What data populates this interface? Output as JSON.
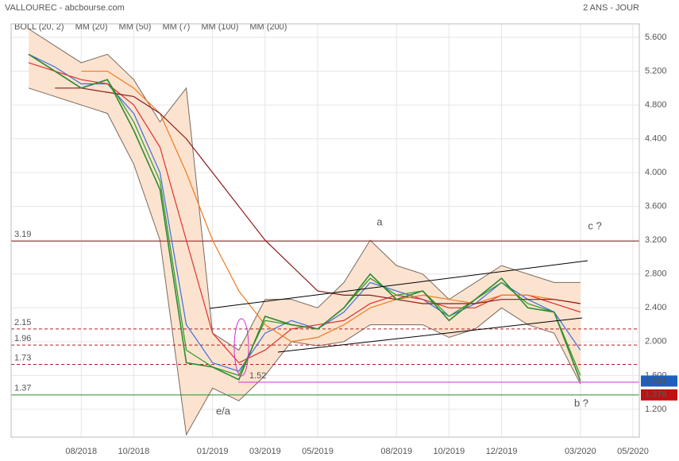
{
  "chart_data": {
    "type": "line",
    "title": "VALLOUREC - abcbourse.com",
    "subtitle": "2 ANS - JOUR",
    "x": [
      "06/2018",
      "07/2018",
      "08/2018",
      "09/2018",
      "10/2018",
      "11/2018",
      "12/2018",
      "01/2019",
      "02/2019",
      "03/2019",
      "04/2019",
      "05/2019",
      "06/2019",
      "07/2019",
      "08/2019",
      "09/2019",
      "10/2019",
      "11/2019",
      "12/2019",
      "01/2020",
      "02/2020",
      "03/2020"
    ],
    "xlim": [
      "05/2018",
      "05/2020"
    ],
    "xticks": [
      "08/2018",
      "10/2018",
      "01/2019",
      "03/2019",
      "05/2019",
      "08/2019",
      "10/2019",
      "12/2019",
      "03/2020",
      "05/2020"
    ],
    "ylim": [
      0.87,
      5.76
    ],
    "yticks": [
      {
        "value": 1.2,
        "label": "1.200"
      },
      {
        "value": 1.6,
        "label": "1.600"
      },
      {
        "value": 2,
        "label": "2.000"
      },
      {
        "value": 2.4,
        "label": "2.400"
      },
      {
        "value": 2.8,
        "label": "2.800"
      },
      {
        "value": 3.2,
        "label": "3.200"
      },
      {
        "value": 3.6,
        "label": "3.600"
      },
      {
        "value": 4,
        "label": "4.000"
      },
      {
        "value": 4.4,
        "label": "4.400"
      },
      {
        "value": 4.8,
        "label": "4.800"
      },
      {
        "value": 5.2,
        "label": "5.200"
      },
      {
        "value": 5.6,
        "label": "5.600"
      }
    ],
    "grid": true,
    "price": {
      "color": "#2f8a2f",
      "values": [
        5.4,
        5.2,
        5.0,
        5.1,
        4.5,
        3.8,
        1.75,
        1.7,
        1.55,
        2.3,
        2.2,
        2.15,
        2.4,
        2.8,
        2.5,
        2.6,
        2.25,
        2.5,
        2.75,
        2.4,
        2.35,
        1.534
      ]
    },
    "bollinger": {
      "name": "BOLL (20, 2)",
      "color": "#7a6a60",
      "fill": "#fbe3cf",
      "upper": [
        5.7,
        5.5,
        5.3,
        5.4,
        5.1,
        4.6,
        5.0,
        2.1,
        1.9,
        2.5,
        2.5,
        2.4,
        2.7,
        3.2,
        2.9,
        2.8,
        2.5,
        2.7,
        2.9,
        2.8,
        2.7,
        2.7
      ],
      "lower": [
        5.0,
        4.9,
        4.8,
        4.7,
        4.1,
        3.2,
        0.9,
        1.45,
        1.3,
        1.6,
        2.0,
        1.95,
        2.0,
        2.2,
        2.2,
        2.2,
        2.05,
        2.15,
        2.4,
        2.2,
        2.1,
        1.5
      ]
    },
    "series": [
      {
        "name": "MM (20)",
        "color": "#3a6ee0",
        "values": [
          5.4,
          5.25,
          5.05,
          5.05,
          4.7,
          4.0,
          2.2,
          1.75,
          1.65,
          2.1,
          2.25,
          2.15,
          2.35,
          2.7,
          2.6,
          2.5,
          2.3,
          2.45,
          2.7,
          2.5,
          2.35,
          1.9
        ]
      },
      {
        "name": "MM (50)",
        "color": "#e03030",
        "values": [
          5.3,
          5.2,
          5.1,
          5.05,
          4.8,
          4.3,
          3.2,
          2.1,
          1.75,
          1.9,
          2.15,
          2.2,
          2.25,
          2.45,
          2.55,
          2.5,
          2.4,
          2.4,
          2.55,
          2.55,
          2.45,
          2.35
        ]
      },
      {
        "name": "MM (7)",
        "color": "#2a9a2a",
        "values": [
          5.4,
          5.2,
          5.0,
          5.1,
          4.6,
          3.9,
          1.9,
          1.7,
          1.6,
          2.25,
          2.2,
          2.15,
          2.4,
          2.75,
          2.55,
          2.6,
          2.3,
          2.5,
          2.7,
          2.45,
          2.35,
          1.6
        ]
      },
      {
        "name": "MM (100)",
        "color": "#f07a20",
        "values": [
          null,
          null,
          5.2,
          5.2,
          5.0,
          4.7,
          4.0,
          3.2,
          2.6,
          2.2,
          2.0,
          2.05,
          2.2,
          2.4,
          2.5,
          2.55,
          2.5,
          2.45,
          2.55,
          2.55,
          2.5,
          2.45
        ]
      },
      {
        "name": "MM (200)",
        "color": "#8b1a1a",
        "values": [
          null,
          5.0,
          5.0,
          4.95,
          4.9,
          4.7,
          4.4,
          4.0,
          3.6,
          3.2,
          2.9,
          2.6,
          2.55,
          2.55,
          2.5,
          2.45,
          2.45,
          2.45,
          2.5,
          2.5,
          2.5,
          2.45
        ]
      }
    ],
    "levels": [
      {
        "value": 3.19,
        "color": "#8b1a1a",
        "dashed": false
      },
      {
        "value": 2.15,
        "color": "#b02020",
        "dashed": true
      },
      {
        "value": 1.96,
        "color": "#b02020",
        "dashed": true
      },
      {
        "value": 1.73,
        "color": "#b02020",
        "dashed": true
      },
      {
        "value": 1.37,
        "color": "#2a8a2a",
        "dashed": false
      }
    ],
    "support": {
      "value": 1.52,
      "color": "#d030d0"
    },
    "price_tags": [
      {
        "value": 1.534,
        "color": "#1f5fbf"
      },
      {
        "value": 1.37,
        "label": "1.370",
        "color": "#c01010"
      }
    ],
    "annotations": [
      "a",
      "c ?",
      "e/a",
      "b ?"
    ]
  }
}
